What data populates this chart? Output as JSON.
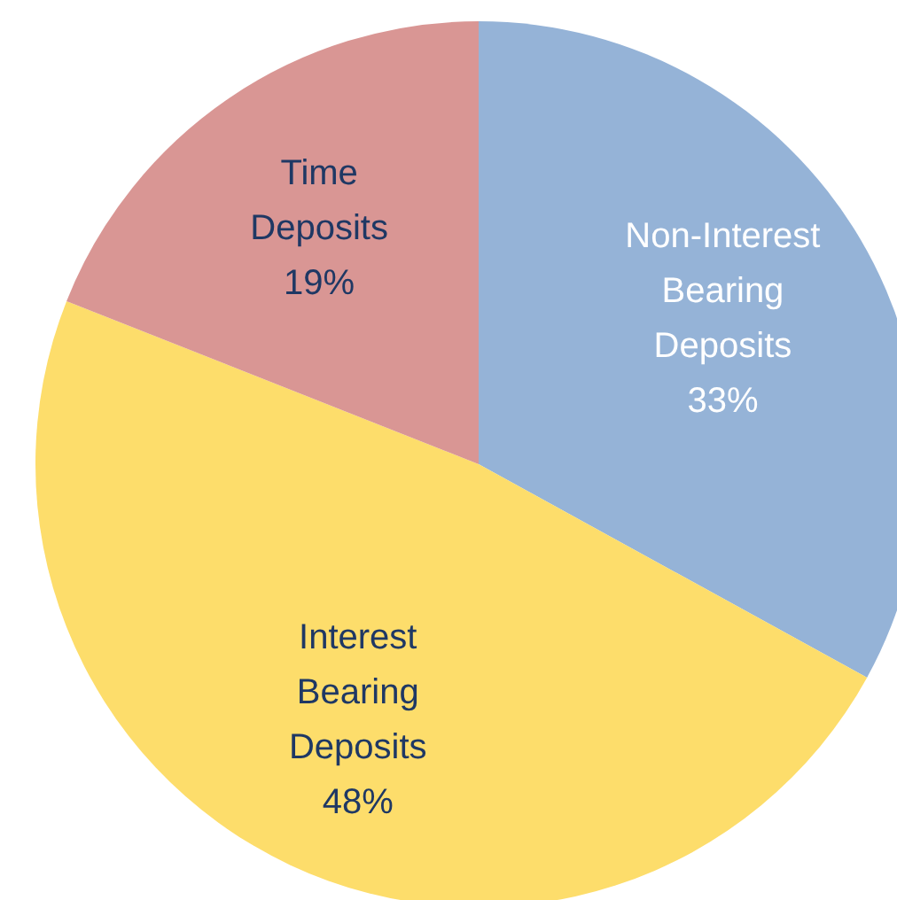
{
  "chart_data": {
    "type": "pie",
    "categories": [
      "Non-Interest Bearing Deposits",
      "Interest Bearing Deposits",
      "Time Deposits"
    ],
    "values": [
      33,
      48,
      19
    ],
    "value_labels": [
      "33%",
      "48%",
      "19%"
    ],
    "colors": [
      "#95b3d7",
      "#fddd6b",
      "#d99694"
    ],
    "legend": false
  }
}
